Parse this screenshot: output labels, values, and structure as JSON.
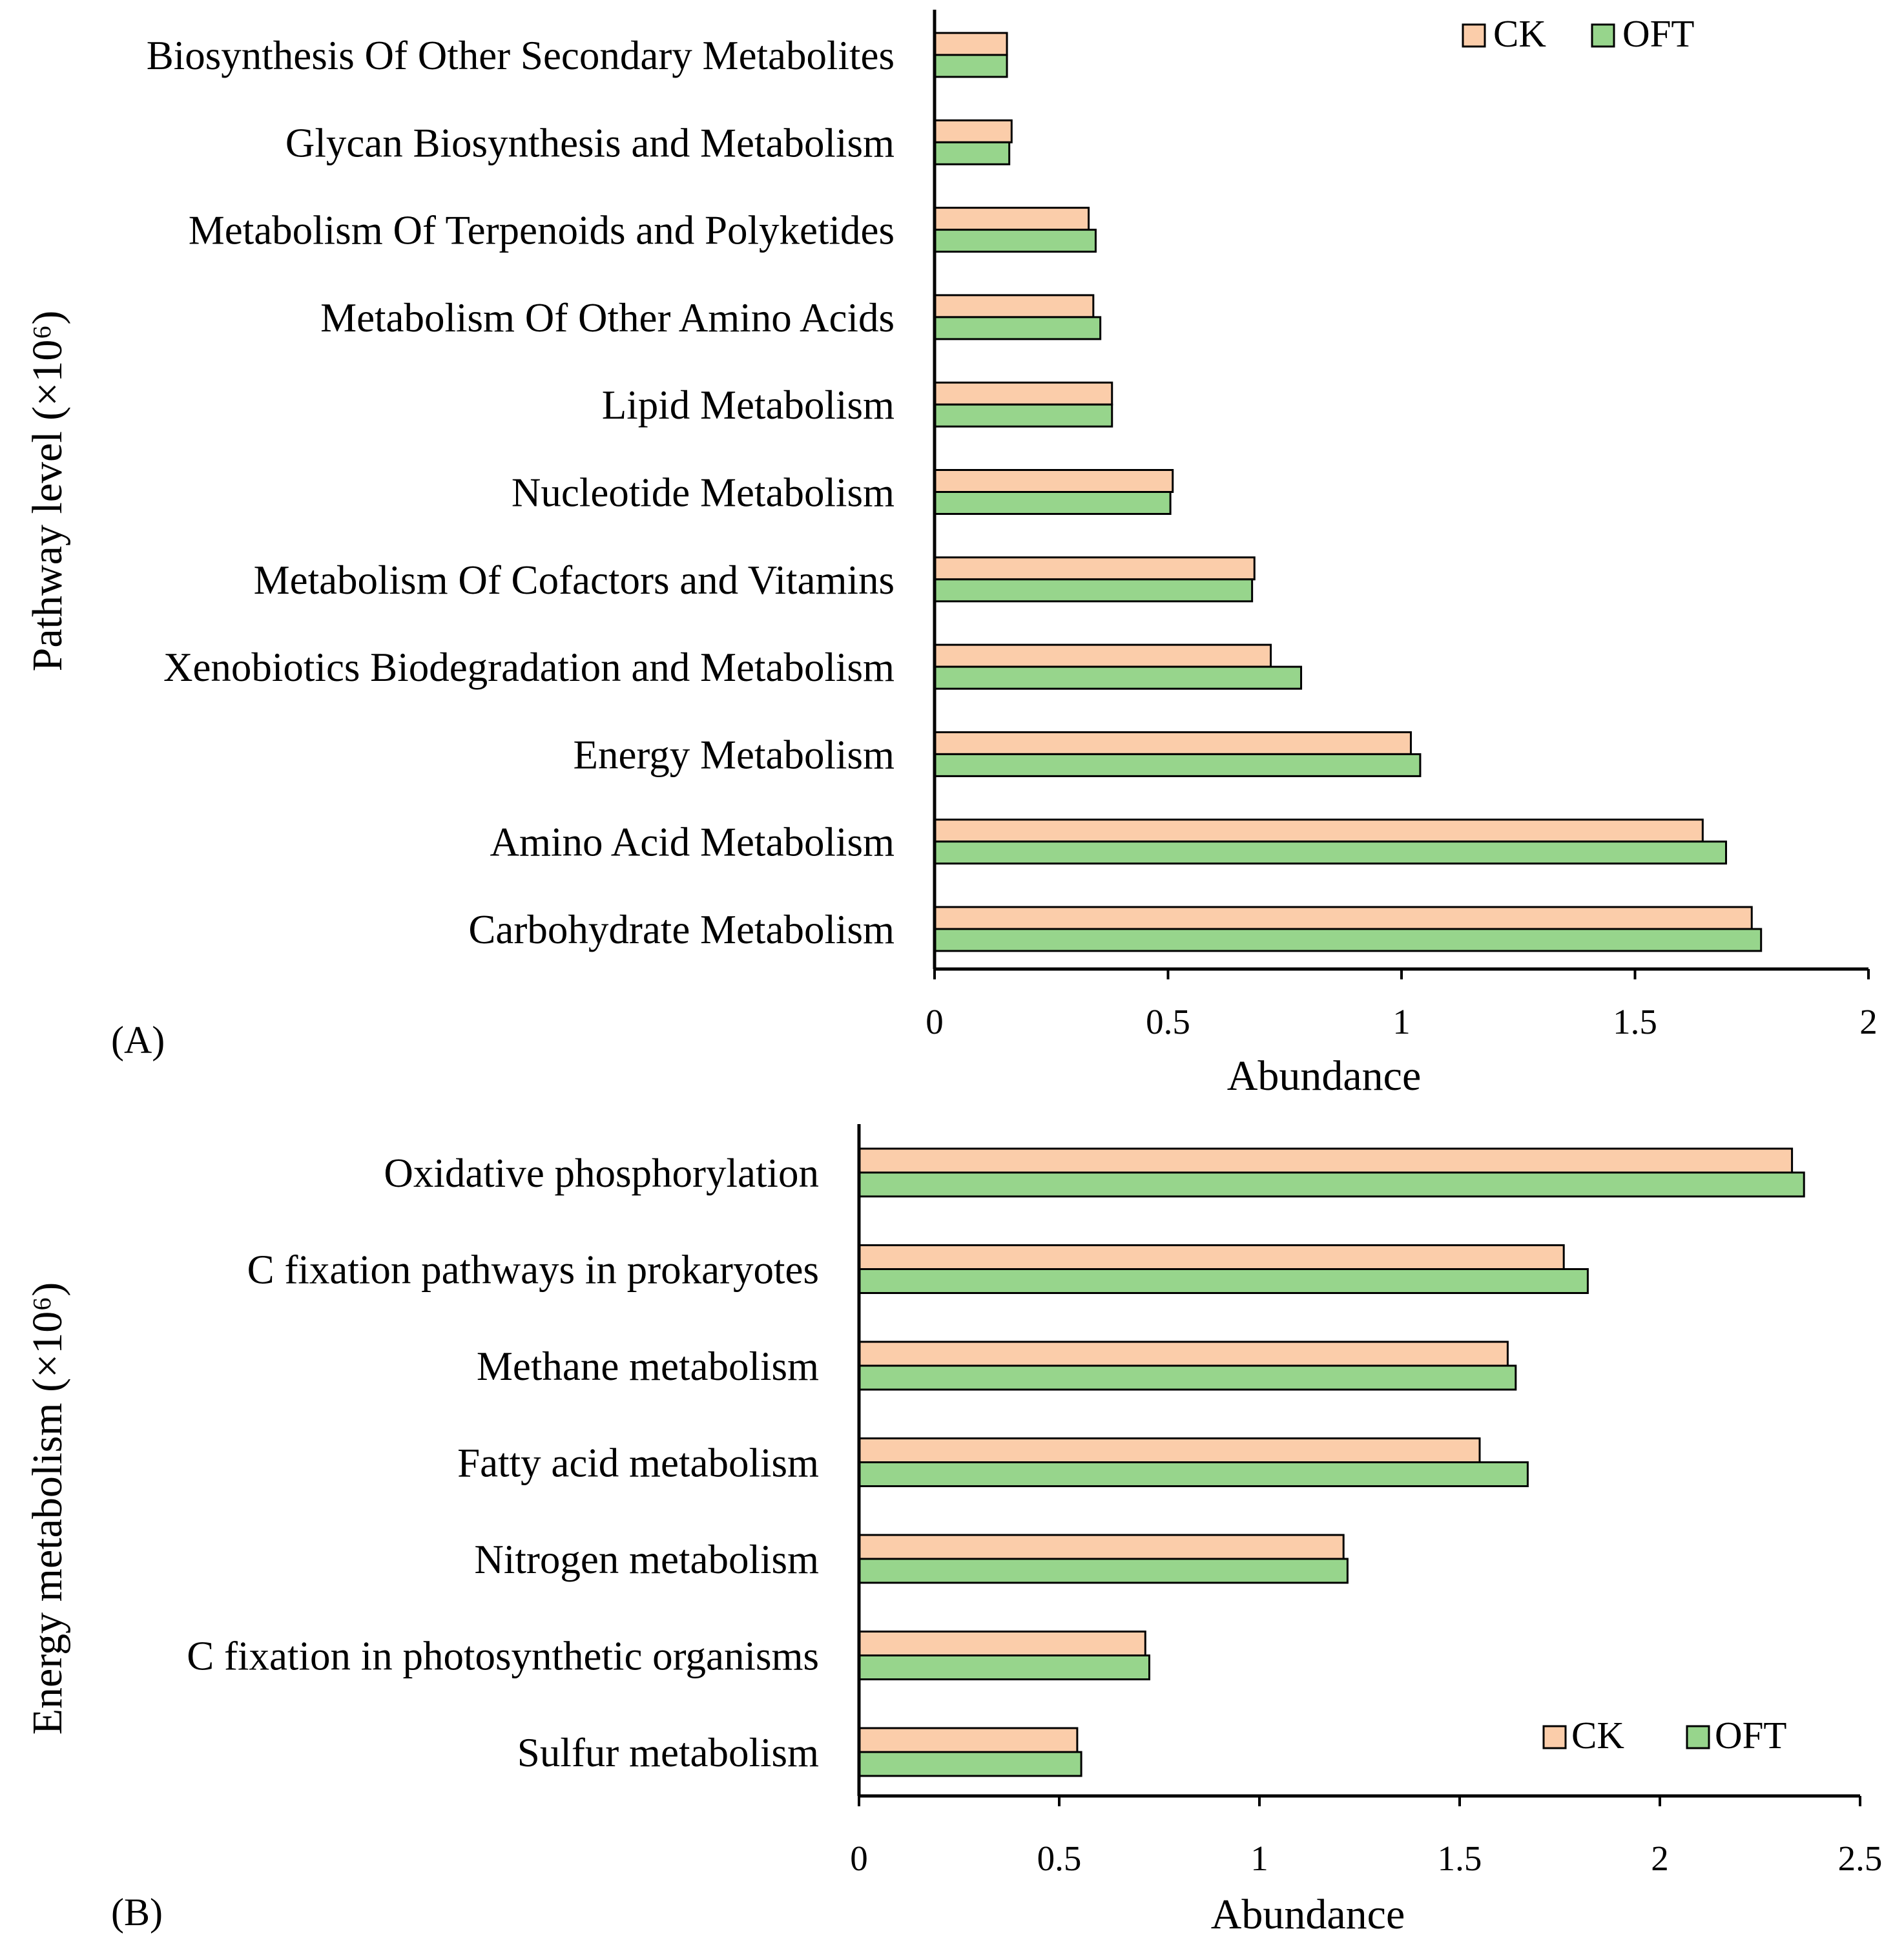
{
  "colors": {
    "CK": "#fbcdaa",
    "OFT": "#97d58c"
  },
  "chart_data": [
    {
      "id": "A",
      "type": "bar",
      "orientation": "horizontal",
      "panel_label": "(A)",
      "xlabel": "Abundance",
      "ylabel": "Pathway level (×10⁶)",
      "xlim": [
        0,
        2
      ],
      "xticks": [
        "0",
        "0.5",
        "1",
        "1.5",
        "2"
      ],
      "legend": {
        "entries": [
          "CK",
          "OFT"
        ],
        "placement": "top-right"
      },
      "categories": [
        "Biosynthesis Of Other Secondary Metabolites",
        "Glycan Biosynthesis and Metabolism",
        "Metabolism Of Terpenoids and Polyketides",
        "Metabolism Of Other Amino Acids",
        "Lipid Metabolism",
        "Nucleotide Metabolism",
        "Metabolism Of Cofactors and Vitamins",
        "Xenobiotics Biodegradation and Metabolism",
        "Energy Metabolism",
        "Amino Acid Metabolism",
        "Carbohydrate Metabolism"
      ],
      "series": [
        {
          "name": "CK",
          "values": [
            0.155,
            0.165,
            0.33,
            0.34,
            0.38,
            0.51,
            0.685,
            0.72,
            1.02,
            1.645,
            1.75
          ]
        },
        {
          "name": "OFT",
          "values": [
            0.155,
            0.16,
            0.345,
            0.355,
            0.38,
            0.505,
            0.68,
            0.785,
            1.04,
            1.695,
            1.77
          ]
        }
      ]
    },
    {
      "id": "B",
      "type": "bar",
      "orientation": "horizontal",
      "panel_label": "(B)",
      "xlabel": "Abundance",
      "ylabel": "Energy metabolism (×10⁶)",
      "xlim": [
        0,
        2.5
      ],
      "xticks": [
        "0",
        "0.5",
        "1",
        "1.5",
        "2",
        "2.5"
      ],
      "legend": {
        "entries": [
          "CK",
          "OFT"
        ],
        "placement": "bottom-right"
      },
      "categories": [
        "Oxidative phosphorylation",
        "C fixation pathways in prokaryotes",
        "Methane metabolism",
        "Fatty acid metabolism",
        "Nitrogen metabolism",
        "C fixation in photosynthetic organisms",
        "Sulfur metabolism"
      ],
      "series": [
        {
          "name": "CK",
          "values": [
            2.33,
            1.76,
            1.62,
            1.55,
            1.21,
            0.715,
            0.545
          ]
        },
        {
          "name": "OFT",
          "values": [
            2.36,
            1.82,
            1.64,
            1.67,
            1.22,
            0.725,
            0.555
          ]
        }
      ]
    }
  ]
}
